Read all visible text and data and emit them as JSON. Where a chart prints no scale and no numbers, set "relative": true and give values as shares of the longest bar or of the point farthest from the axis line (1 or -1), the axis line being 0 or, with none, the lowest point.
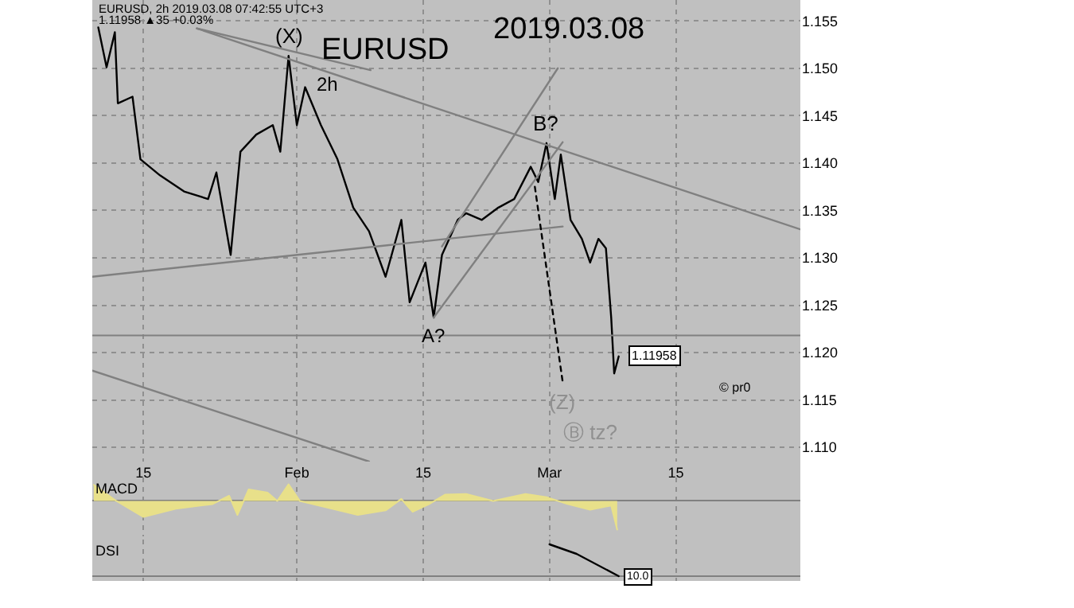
{
  "chart_data": [
    {
      "type": "line",
      "title": "EURUSD",
      "subtitle": "2019.03.08",
      "xlim": [
        "2019-01-09T08:00",
        "2019-03-28T19:00"
      ],
      "ylim": [
        1.1085,
        1.1572
      ],
      "xticks": [
        {
          "value": "2019-01-15",
          "label": "15"
        },
        {
          "value": "2019-02-01",
          "label": "Feb"
        },
        {
          "value": "2019-02-15",
          "label": "15"
        },
        {
          "value": "2019-03-01",
          "label": "Mar"
        },
        {
          "value": "2019-03-15",
          "label": "15"
        }
      ],
      "yticks": [
        {
          "value": 1.11,
          "label": "1.110"
        },
        {
          "value": 1.115,
          "label": "1.115"
        },
        {
          "value": 1.12,
          "label": "1.120"
        },
        {
          "value": 1.125,
          "label": "1.125"
        },
        {
          "value": 1.13,
          "label": "1.130"
        },
        {
          "value": 1.135,
          "label": "1.135"
        },
        {
          "value": 1.14,
          "label": "1.140"
        },
        {
          "value": 1.145,
          "label": "1.145"
        },
        {
          "value": 1.15,
          "label": "1.150"
        },
        {
          "value": 1.155,
          "label": "1.155"
        }
      ],
      "grid": true,
      "series": [
        {
          "color": "#000000",
          "x": [
            "2019-01-10T00:00",
            "2019-01-10T22:00",
            "2019-01-11T20:00",
            "2019-01-12T04:00",
            "2019-01-13T19:00",
            "2019-01-14T16:00",
            "2019-01-16T20:00",
            "2019-01-19T12:00",
            "2019-01-22T04:00",
            "2019-01-23T02:00",
            "2019-01-24T16:00",
            "2019-01-25T18:00",
            "2019-01-27T12:00",
            "2019-01-29T08:00",
            "2019-01-30T04:00",
            "2019-01-31T02:00",
            "2019-02-01T00:00",
            "2019-02-01T22:00",
            "2019-02-03T16:00",
            "2019-02-05T12:00",
            "2019-02-07T06:00",
            "2019-02-09T00:00",
            "2019-02-10T20:00",
            "2019-02-12T14:00",
            "2019-02-13T12:00",
            "2019-02-15T06:00",
            "2019-02-16T04:00",
            "2019-02-17T02:00",
            "2019-02-18T20:00",
            "2019-02-19T18:00",
            "2019-02-21T12:00",
            "2019-02-23T08:00",
            "2019-02-25T02:00",
            "2019-02-26T22:00",
            "2019-02-27T18:00",
            "2019-02-28T16:00",
            "2019-03-01T14:00",
            "2019-03-02T06:00",
            "2019-03-03T08:00",
            "2019-03-04T14:00",
            "2019-03-05T12:00",
            "2019-03-06T10:00",
            "2019-03-07T06:00",
            "2019-03-07T20:00",
            "2019-03-08T04:00",
            "2019-03-08T16:00"
          ],
          "values": [
            1.1543,
            1.1501,
            1.1538,
            1.1463,
            1.147,
            1.1404,
            1.1387,
            1.137,
            1.1362,
            1.139,
            1.1303,
            1.1412,
            1.143,
            1.144,
            1.1412,
            1.1513,
            1.144,
            1.148,
            1.144,
            1.1404,
            1.1353,
            1.1328,
            1.128,
            1.134,
            1.1253,
            1.1295,
            1.1237,
            1.1303,
            1.134,
            1.1347,
            1.134,
            1.1353,
            1.1362,
            1.1396,
            1.138,
            1.1421,
            1.1362,
            1.1409,
            1.134,
            1.132,
            1.1295,
            1.132,
            1.131,
            1.1237,
            1.1178,
            1.1196
          ]
        },
        {
          "color": "#808080",
          "x": [
            "2019-01-20T22:00",
            "2019-03-28T19:00"
          ],
          "values": [
            1.1542,
            1.133
          ]
        },
        {
          "color": "#808080",
          "x": [
            "2019-01-20T22:00",
            "2019-02-09T04:00"
          ],
          "values": [
            1.1542,
            1.1498
          ]
        },
        {
          "color": "#808080",
          "x": [
            "2019-01-09T08:00",
            "2019-03-02T11:00"
          ],
          "values": [
            1.128,
            1.1333
          ]
        },
        {
          "color": "#808080",
          "x": [
            "2019-01-09T08:00",
            "2019-02-09T00:00"
          ],
          "values": [
            1.1181,
            1.1085
          ]
        },
        {
          "color": "#808080",
          "x": [
            "2019-02-17T02:00",
            "2019-03-01T22:00"
          ],
          "values": [
            1.1312,
            1.15
          ]
        },
        {
          "color": "#808080",
          "x": [
            "2019-02-16T04:00",
            "2019-03-02T11:00"
          ],
          "values": [
            1.1237,
            1.1422
          ]
        },
        {
          "color": "#000000",
          "line_style": "dotted",
          "x": [
            "2019-02-27T09:00",
            "2019-03-02T11:00"
          ],
          "values": [
            1.1375,
            1.1169
          ]
        }
      ],
      "ref_lines": [
        {
          "axis": "y",
          "value": 1.1218,
          "color": "#808080"
        }
      ],
      "annotations": [
        {
          "text": "(X)",
          "x": "2019-01-31T02:00",
          "y": 1.1513
        },
        {
          "text": "A?",
          "x": "2019-02-16T04:00",
          "y": 1.1237
        },
        {
          "text": "B?",
          "x": "2019-02-28T16:00",
          "y": 1.1421
        },
        {
          "text": "(Z)",
          "x": "2019-03-02T11:00",
          "y": 1.1169
        },
        {
          "text": "1.11958",
          "x": "2019-03-08T16:00",
          "y": 1.1196
        },
        "EURUSD, 2h 2019.03.08 07:42:55 UTC+3",
        "1.11958 ▲35 +0.03%",
        "2h",
        "Ⓑ tz?",
        "© pr0"
      ]
    },
    {
      "type": "area",
      "title": "MACD",
      "relative": true,
      "tick_labels": false,
      "grid": "x",
      "xlim": [
        "2019-01-09T08:00",
        "2019-03-28T19:00"
      ],
      "series": [
        {
          "color": "#e8e08a",
          "x": [
            "2019-01-09T12:00",
            "2019-01-12T00:00",
            "2019-01-15T00:00",
            "2019-01-18T14:00",
            "2019-01-22T16:00",
            "2019-01-24T12:00",
            "2019-01-25T10:00",
            "2019-01-26T16:00",
            "2019-01-28T18:00",
            "2019-01-29T20:00",
            "2019-01-31T02:00",
            "2019-02-01T08:00",
            "2019-02-04T22:00",
            "2019-02-07T18:00",
            "2019-02-10T20:00",
            "2019-02-12T14:00",
            "2019-02-13T20:00",
            "2019-02-15T16:00",
            "2019-02-17T10:00",
            "2019-02-19T18:00",
            "2019-02-22T18:00",
            "2019-02-26T08:00",
            "2019-02-28T16:00",
            "2019-03-03T00:00",
            "2019-03-05T12:00",
            "2019-03-07T20:00",
            "2019-03-08T12:00"
          ],
          "values": [
            0.56,
            0,
            -0.56,
            -0.27,
            -0.11,
            0.18,
            -0.49,
            0.4,
            0.29,
            0,
            0.58,
            0,
            -0.27,
            -0.49,
            -0.33,
            0.07,
            -0.38,
            -0.11,
            0.22,
            0.24,
            0,
            0.24,
            0.13,
            -0.11,
            -0.31,
            -0.16,
            -1
          ]
        }
      ]
    },
    {
      "type": "line",
      "title": "DSI",
      "relative": true,
      "tick_labels": false,
      "grid": "x",
      "xlim": [
        "2019-01-09T08:00",
        "2019-03-28T19:00"
      ],
      "series": [
        {
          "color": "#000000",
          "x": [
            "2019-03-01T00:00",
            "2019-03-04T00:00",
            "2019-03-08T16:00"
          ],
          "values": [
            1,
            0.7,
            0
          ]
        }
      ],
      "annotations": [
        {
          "text": "10.0",
          "x": "2019-03-08T16:00",
          "y": 0
        }
      ]
    }
  ]
}
